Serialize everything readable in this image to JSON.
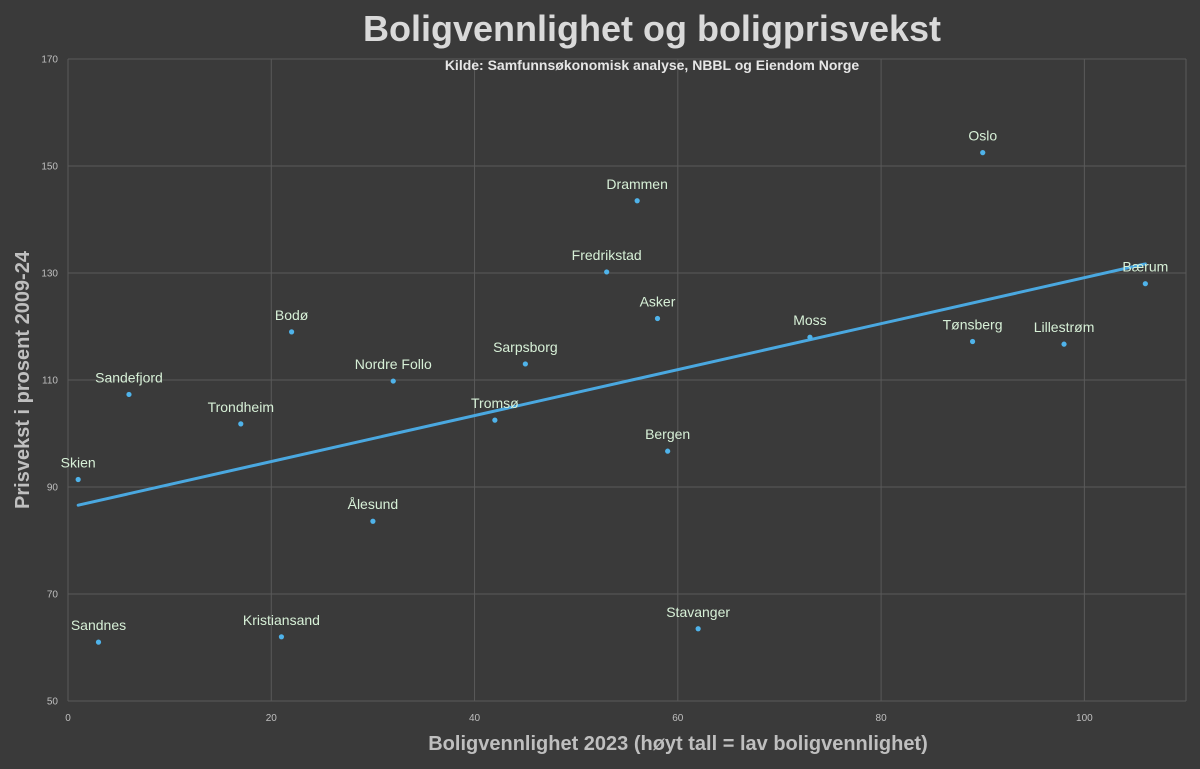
{
  "chart_data": {
    "type": "scatter",
    "title": "Boligvennlighet og boligprisvekst",
    "subtitle": "Kilde: Samfunnsøkonomisk analyse, NBBL og Eiendom Norge",
    "xlabel": "Boligvennlighet 2023 (høyt tall = lav boligvennlighet)",
    "ylabel": "Prisvekst i prosent 2009-24",
    "xlim": [
      0,
      110
    ],
    "ylim": [
      50,
      170
    ],
    "xticks": [
      0,
      20,
      40,
      60,
      80,
      100
    ],
    "yticks": [
      50,
      70,
      90,
      110,
      130,
      150,
      170
    ],
    "grid": true,
    "point_color": "#4fb3ea",
    "trendline_color": "#4aa8e0",
    "label_color": "#d7f0d7",
    "points": [
      {
        "name": "Oslo",
        "x": 90,
        "y": 152.5
      },
      {
        "name": "Drammen",
        "x": 56,
        "y": 143.5
      },
      {
        "name": "Fredrikstad",
        "x": 53,
        "y": 130.2
      },
      {
        "name": "Bærum",
        "x": 106,
        "y": 128
      },
      {
        "name": "Asker",
        "x": 58,
        "y": 121.5
      },
      {
        "name": "Bodø",
        "x": 22,
        "y": 119
      },
      {
        "name": "Moss",
        "x": 73,
        "y": 118
      },
      {
        "name": "Tønsberg",
        "x": 89,
        "y": 117.2
      },
      {
        "name": "Lillestrøm",
        "x": 98,
        "y": 116.7
      },
      {
        "name": "Sarpsborg",
        "x": 45,
        "y": 113
      },
      {
        "name": "Nordre Follo",
        "x": 32,
        "y": 109.8
      },
      {
        "name": "Sandefjord",
        "x": 6,
        "y": 107.3
      },
      {
        "name": "Trondheim",
        "x": 17,
        "y": 101.8
      },
      {
        "name": "Tromsø",
        "x": 42,
        "y": 102.5
      },
      {
        "name": "Bergen",
        "x": 59,
        "y": 96.7
      },
      {
        "name": "Skien",
        "x": 1,
        "y": 91.4
      },
      {
        "name": "Ålesund",
        "x": 30,
        "y": 83.6
      },
      {
        "name": "Stavanger",
        "x": 62,
        "y": 63.5
      },
      {
        "name": "Kristiansand",
        "x": 21,
        "y": 62
      },
      {
        "name": "Sandnes",
        "x": 3,
        "y": 61
      }
    ],
    "trendline": {
      "x": [
        1,
        106
      ],
      "y": [
        86.6,
        131.7
      ]
    }
  }
}
